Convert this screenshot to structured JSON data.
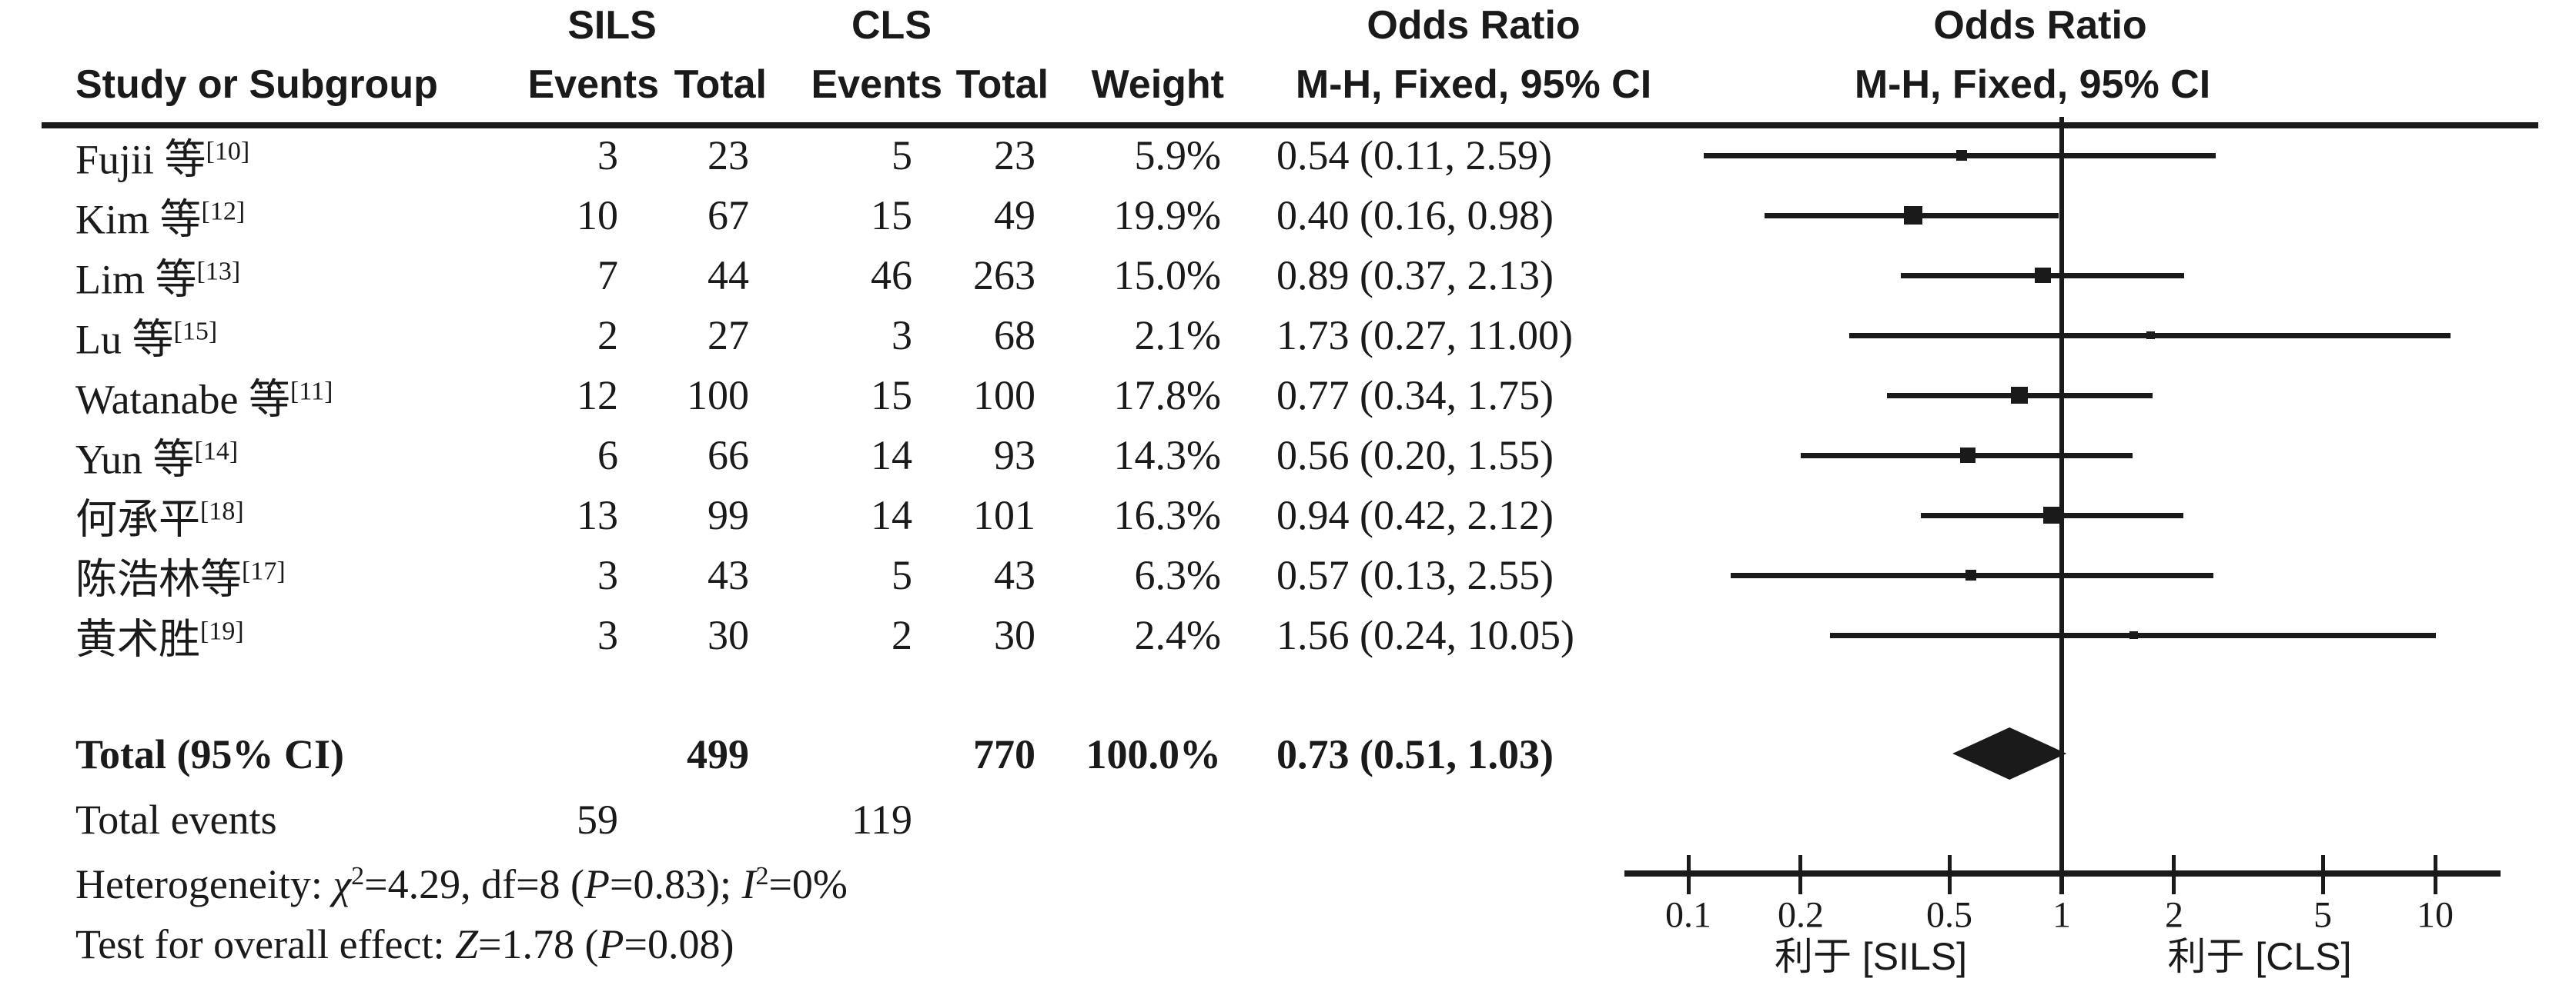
{
  "colors": {
    "ink": "#1a1a1a",
    "background": "#ffffff"
  },
  "header": {
    "study": "Study or Subgroup",
    "sils": "SILS",
    "cls": "CLS",
    "events_sils": "Events",
    "total_sils": "Total",
    "events_cls": "Events",
    "total_cls": "Total",
    "weight": "Weight",
    "or_col_title": "Odds Ratio",
    "or_col_sub": "M-H, Fixed, 95% CI",
    "or_plot_title": "Odds Ratio",
    "or_plot_sub": "M-H, Fixed, 95% CI"
  },
  "labels": {
    "total": "Total (95% CI)",
    "total_events": "Total events"
  },
  "stats": {
    "heterogeneity": [
      {
        "t": "Heterogeneity: "
      },
      {
        "t": "χ",
        "i": true
      },
      {
        "t": "2",
        "sup": true
      },
      {
        "t": "=4.29, df=8 ("
      },
      {
        "t": "P",
        "i": true
      },
      {
        "t": "=0.83); "
      },
      {
        "t": "I",
        "i": true
      },
      {
        "t": "2",
        "sup": true
      },
      {
        "t": "=0%"
      }
    ],
    "overall": [
      {
        "t": "Test for overall effect: "
      },
      {
        "t": "Z",
        "i": true
      },
      {
        "t": "=1.78 ("
      },
      {
        "t": "P",
        "i": true
      },
      {
        "t": "=0.08)"
      }
    ]
  },
  "chart_data": {
    "type": "forest",
    "effect_measure": "Odds Ratio, M-H, Fixed, 95% CI",
    "x_scale": "log10",
    "x_ticks": [
      0.1,
      0.2,
      0.5,
      1,
      2,
      5,
      10
    ],
    "x_tick_labels": [
      "0.1",
      "0.2",
      "0.5",
      "1",
      "2",
      "5",
      "10"
    ],
    "x_range_drawn": [
      0.07,
      15
    ],
    "favors_left": "利于 [SILS]",
    "favors_right": "利于 [CLS]",
    "studies": [
      {
        "name": "Fujii 等",
        "ref": "[10]",
        "sils_events": 3,
        "sils_total": 23,
        "cls_events": 5,
        "cls_total": 23,
        "weight_pct": 5.9,
        "weight_str": "5.9%",
        "or": 0.54,
        "ci_low": 0.11,
        "ci_high": 2.59,
        "or_str": "0.54 (0.11, 2.59)"
      },
      {
        "name": "Kim 等",
        "ref": "[12]",
        "sils_events": 10,
        "sils_total": 67,
        "cls_events": 15,
        "cls_total": 49,
        "weight_pct": 19.9,
        "weight_str": "19.9%",
        "or": 0.4,
        "ci_low": 0.16,
        "ci_high": 0.98,
        "or_str": "0.40 (0.16, 0.98)"
      },
      {
        "name": "Lim 等",
        "ref": "[13]",
        "sils_events": 7,
        "sils_total": 44,
        "cls_events": 46,
        "cls_total": 263,
        "weight_pct": 15.0,
        "weight_str": "15.0%",
        "or": 0.89,
        "ci_low": 0.37,
        "ci_high": 2.13,
        "or_str": "0.89 (0.37, 2.13)"
      },
      {
        "name": "Lu 等",
        "ref": "[15]",
        "sils_events": 2,
        "sils_total": 27,
        "cls_events": 3,
        "cls_total": 68,
        "weight_pct": 2.1,
        "weight_str": "2.1%",
        "or": 1.73,
        "ci_low": 0.27,
        "ci_high": 11.0,
        "or_str": "1.73 (0.27, 11.00)"
      },
      {
        "name": "Watanabe 等",
        "ref": "[11]",
        "sils_events": 12,
        "sils_total": 100,
        "cls_events": 15,
        "cls_total": 100,
        "weight_pct": 17.8,
        "weight_str": "17.8%",
        "or": 0.77,
        "ci_low": 0.34,
        "ci_high": 1.75,
        "or_str": "0.77 (0.34, 1.75)"
      },
      {
        "name": "Yun 等",
        "ref": "[14]",
        "sils_events": 6,
        "sils_total": 66,
        "cls_events": 14,
        "cls_total": 93,
        "weight_pct": 14.3,
        "weight_str": "14.3%",
        "or": 0.56,
        "ci_low": 0.2,
        "ci_high": 1.55,
        "or_str": "0.56 (0.20, 1.55)"
      },
      {
        "name": "何承平",
        "ref": "[18]",
        "sils_events": 13,
        "sils_total": 99,
        "cls_events": 14,
        "cls_total": 101,
        "weight_pct": 16.3,
        "weight_str": "16.3%",
        "or": 0.94,
        "ci_low": 0.42,
        "ci_high": 2.12,
        "or_str": "0.94 (0.42, 2.12)"
      },
      {
        "name": "陈浩林等",
        "ref": "[17]",
        "sils_events": 3,
        "sils_total": 43,
        "cls_events": 5,
        "cls_total": 43,
        "weight_pct": 6.3,
        "weight_str": "6.3%",
        "or": 0.57,
        "ci_low": 0.13,
        "ci_high": 2.55,
        "or_str": "0.57 (0.13, 2.55)"
      },
      {
        "name": "黄术胜",
        "ref": "[19]",
        "sils_events": 3,
        "sils_total": 30,
        "cls_events": 2,
        "cls_total": 30,
        "weight_pct": 2.4,
        "weight_str": "2.4%",
        "or": 1.56,
        "ci_low": 0.24,
        "ci_high": 10.05,
        "or_str": "1.56 (0.24, 10.05)"
      }
    ],
    "summary": {
      "sils_total": 499,
      "cls_total": 770,
      "sils_events": 59,
      "cls_events": 119,
      "weight_str": "100.0%",
      "or": 0.73,
      "ci_low": 0.51,
      "ci_high": 1.03,
      "or_str": "0.73 (0.51, 1.03)"
    },
    "heterogeneity_text": "Heterogeneity: χ²=4.29, df=8 (P=0.83); I²=0%",
    "overall_effect_text": "Test for overall effect: Z=1.78 (P=0.08)"
  }
}
